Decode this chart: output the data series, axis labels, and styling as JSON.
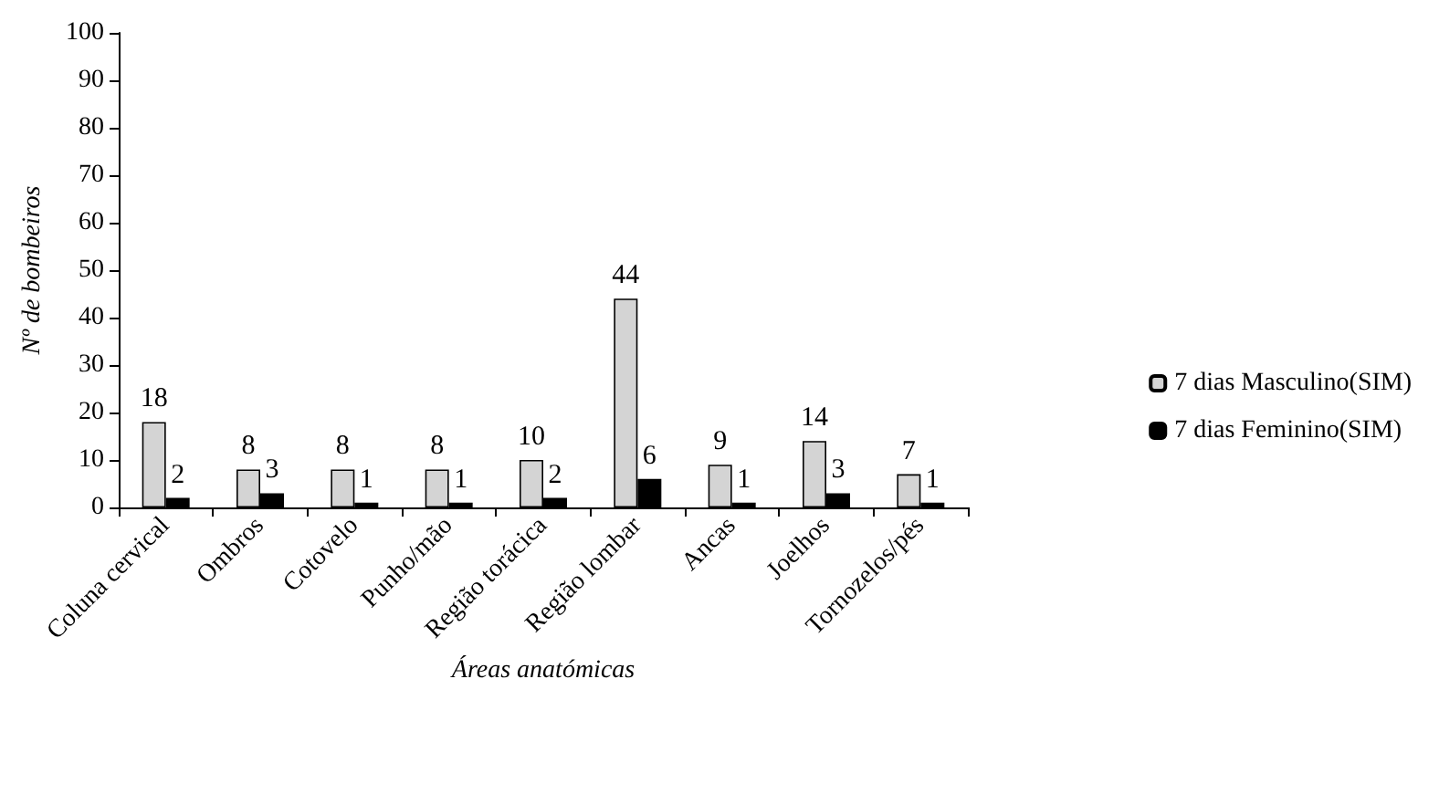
{
  "chart_data": {
    "type": "bar",
    "xlabel": "Áreas anatómicas",
    "ylabel": "Nº de bombeiros",
    "categories": [
      "Coluna cervical",
      "Ombros",
      "Cotovelo",
      "Punho/mão",
      "Região torácica",
      "Região lombar",
      "Ancas",
      "Joelhos",
      "Tornozelos/pés"
    ],
    "series": [
      {
        "name": "7 dias Masculino(SIM)",
        "color": "#d4d4d4",
        "values": [
          18,
          8,
          8,
          8,
          10,
          44,
          9,
          14,
          7
        ]
      },
      {
        "name": "7 dias Feminino(SIM)",
        "color": "#000000",
        "values": [
          2,
          3,
          1,
          1,
          2,
          6,
          1,
          3,
          1
        ]
      }
    ],
    "ylim": [
      0,
      100
    ],
    "yticks": [
      0,
      10,
      20,
      30,
      40,
      50,
      60,
      70,
      80,
      90,
      100
    ],
    "grid": false,
    "legend": "right",
    "data_labels": true
  }
}
